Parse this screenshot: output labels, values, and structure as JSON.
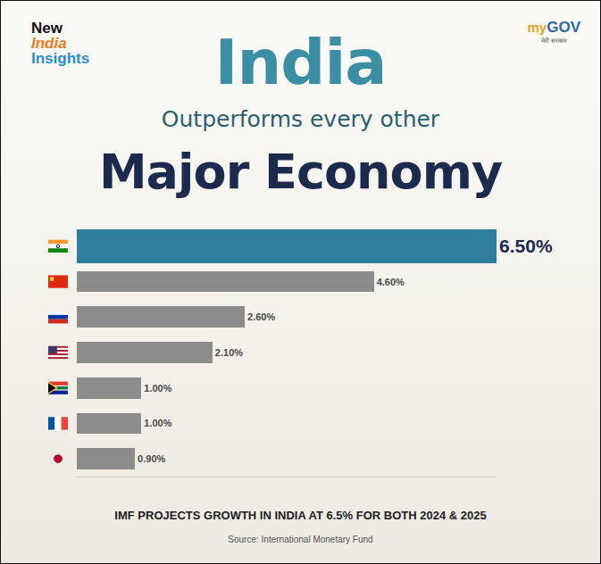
{
  "header": {
    "logo_left": [
      "New",
      "India",
      "Insights"
    ],
    "logo_right": [
      "my",
      "GOV"
    ],
    "logo_right_sub": "मेरी सरकार"
  },
  "chart_data": {
    "type": "bar",
    "orientation": "horizontal",
    "title": [
      "India",
      "Outperforms every other",
      "Major Economy"
    ],
    "categories": [
      null,
      null,
      null,
      null,
      null,
      null,
      null
    ],
    "values": [
      6.5,
      4.6,
      2.6,
      2.1,
      1.0,
      1.0,
      0.9
    ],
    "value_labels": [
      "6.50%",
      "4.60%",
      "2.60%",
      "2.10%",
      "1.00%",
      "1.00%",
      "0.90%"
    ],
    "colors": [
      "#2f7d9c",
      "#8c8c8c",
      "#8c8c8c",
      "#8c8c8c",
      "#8c8c8c",
      "#8c8c8c",
      "#8c8c8c"
    ],
    "xlim": [
      0,
      6.5
    ],
    "xticks": [],
    "tick_labels": false,
    "grid": false,
    "data_labels": true,
    "annotations": [
      "IMF PROJECTS GROWTH IN INDIA AT 6.5% FOR BOTH 2024 & 2025"
    ],
    "source": "Source: International Monetary Fund"
  }
}
